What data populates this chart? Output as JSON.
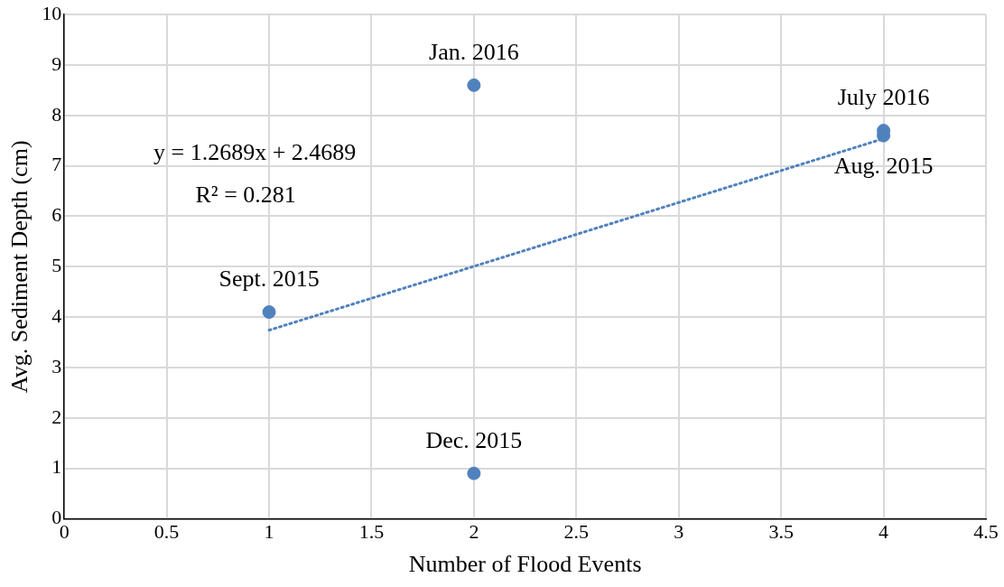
{
  "chart_data": {
    "type": "scatter",
    "xlabel": "Number of Flood Events",
    "ylabel": "Avg. Sediment Depth (cm)",
    "xlim": [
      0,
      4.5
    ],
    "xticks": [
      0,
      0.5,
      1,
      1.5,
      2,
      2.5,
      3,
      3.5,
      4,
      4.5
    ],
    "ylim": [
      0,
      10
    ],
    "yticks": [
      0,
      1,
      2,
      3,
      4,
      5,
      6,
      7,
      8,
      9,
      10
    ],
    "grid": true,
    "legend": false,
    "marker": "circle",
    "series": [
      {
        "color": "#4f81bd",
        "x": [
          1,
          2,
          2,
          4,
          4
        ],
        "values": [
          4.1,
          8.6,
          0.9,
          7.7,
          7.6
        ]
      },
      {
        "type": "line",
        "marker": "none",
        "color": "#4f81bd",
        "line_style": "dotted",
        "x": [
          1,
          4
        ],
        "values": [
          3.74,
          7.54
        ]
      }
    ],
    "annotations": [
      {
        "text": "Sept. 2015",
        "x": 1,
        "y": 4.1
      },
      {
        "text": "Jan. 2016",
        "x": 2,
        "y": 8.6
      },
      {
        "text": "Dec. 2015",
        "x": 2,
        "y": 0.9
      },
      {
        "text": "July 2016",
        "x": 4,
        "y": 7.7
      },
      {
        "text": "Aug. 2015",
        "x": 4,
        "y": 7.6
      },
      "y = 1.2689x + 2.4689",
      "R² = 0.281"
    ]
  }
}
